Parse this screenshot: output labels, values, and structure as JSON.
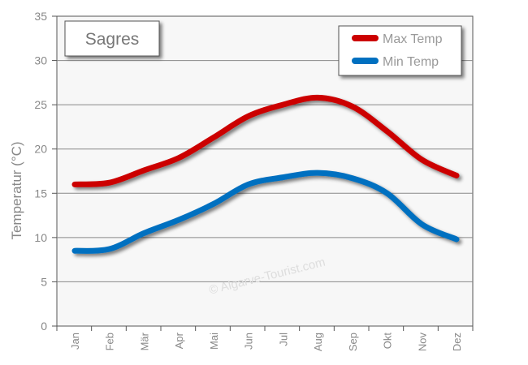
{
  "chart_data": {
    "type": "line",
    "title": "Sagres",
    "ylabel": "Temperatur (°C)",
    "xlabel": "",
    "ylim": [
      0,
      35
    ],
    "yticks": [
      0,
      5,
      10,
      15,
      20,
      25,
      30,
      35
    ],
    "grid": true,
    "legend_position": "top-right",
    "categories": [
      "Jan",
      "Feb",
      "Mär",
      "Apr",
      "Mai",
      "Jun",
      "Jul",
      "Aug",
      "Sep",
      "Okt",
      "Nov",
      "Dez"
    ],
    "series": [
      {
        "name": "Max Temp",
        "color": "#cc0000",
        "values": [
          16,
          16.2,
          17.6,
          19,
          21.3,
          23.7,
          25,
          25.8,
          24.8,
          22,
          18.8,
          17
        ]
      },
      {
        "name": "Min Temp",
        "color": "#0070c0",
        "values": [
          8.5,
          8.7,
          10.5,
          12,
          13.8,
          16,
          16.8,
          17.3,
          16.7,
          15,
          11.5,
          9.8
        ]
      }
    ],
    "watermark": "© Algarve-Tourist.com"
  }
}
